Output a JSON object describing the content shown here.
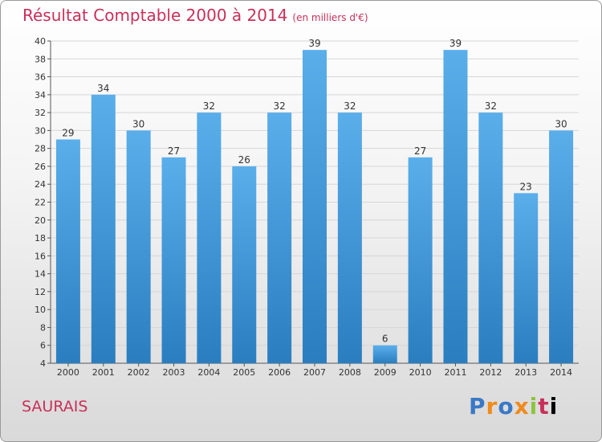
{
  "chart_data": {
    "type": "bar",
    "title": "Résultat Comptable 2000 à 2014",
    "subtitle": "(en milliers d'€)",
    "categories": [
      "2000",
      "2001",
      "2002",
      "2003",
      "2004",
      "2005",
      "2006",
      "2007",
      "2008",
      "2009",
      "2010",
      "2011",
      "2012",
      "2013",
      "2014"
    ],
    "values": [
      29,
      34,
      30,
      27,
      32,
      26,
      32,
      39,
      32,
      6,
      27,
      39,
      32,
      23,
      30
    ],
    "ylim": [
      4,
      40
    ],
    "yticks": [
      4,
      6,
      8,
      10,
      12,
      14,
      16,
      18,
      20,
      22,
      24,
      26,
      28,
      30,
      32,
      34,
      36,
      38,
      40
    ],
    "grid": true,
    "bar_color": "#4a9ee0",
    "title_color": "#c8305a"
  },
  "footer": {
    "place": "SAURAIS",
    "logo_letters": [
      "P",
      "r",
      "o",
      "x",
      "i",
      "t",
      "i"
    ]
  }
}
